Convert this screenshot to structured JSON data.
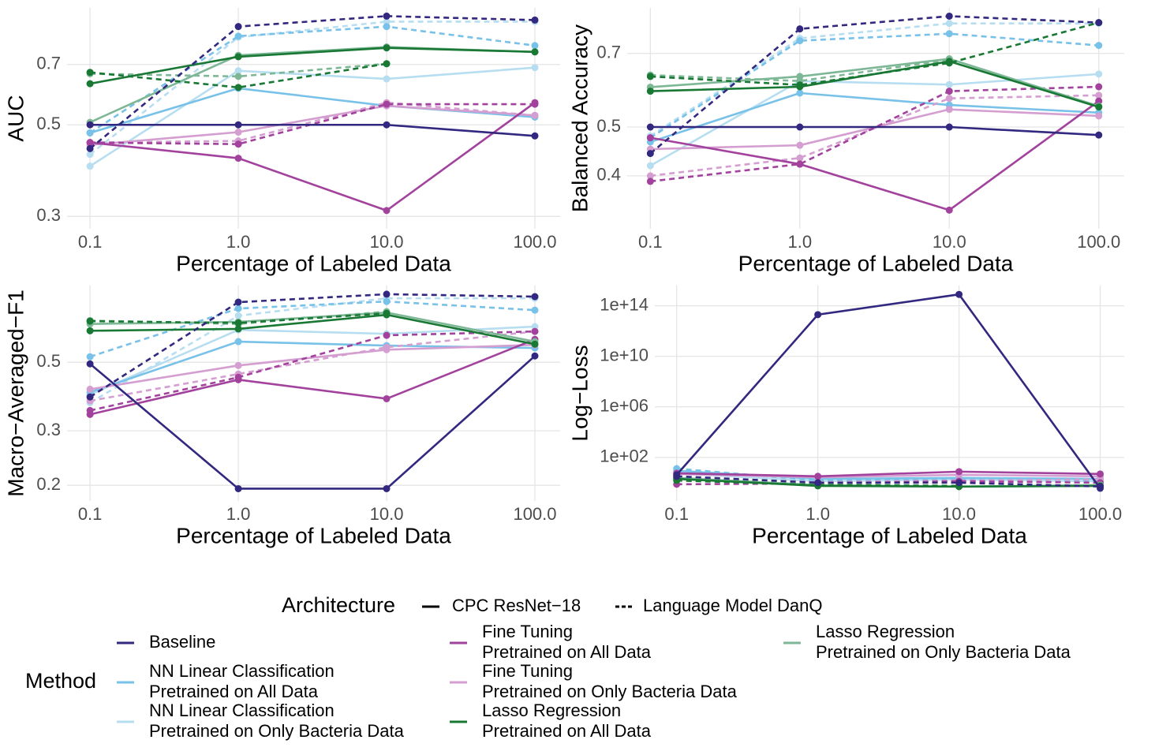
{
  "chart_data": [
    {
      "type": "line",
      "ylabel": "AUC",
      "xlabel": "Percentage of Labeled Data",
      "xlog": true,
      "ylog": true,
      "grid": true,
      "x": [
        0.1,
        1,
        10,
        100
      ],
      "xlim": [
        0.07,
        148
      ],
      "xticks": [
        0.1,
        {
          "value": 1,
          "label": "1.0"
        },
        {
          "value": 10,
          "label": "10.0"
        },
        {
          "value": 100,
          "label": "100.0"
        }
      ],
      "ylim": [
        0.28,
        0.96
      ],
      "yticks": [
        0.3,
        0.5,
        0.7
      ],
      "series": [
        {
          "color": "#b7def0",
          "linestyle": "solid",
          "values": [
            0.397,
            0.676,
            0.646,
            0.688
          ]
        },
        {
          "color": "#b7def0",
          "linestyle": "dashed",
          "values": [
            0.424,
            0.815,
            0.889,
            0.889
          ]
        },
        {
          "color": "#78c1e8",
          "linestyle": "solid",
          "values": [
            0.478,
            0.613,
            0.556,
            0.522
          ]
        },
        {
          "color": "#78c1e8",
          "linestyle": "dashed",
          "values": [
            0.478,
            0.82,
            0.865,
            0.778
          ]
        },
        {
          "color": "#d49fd0",
          "linestyle": "solid",
          "values": [
            0.447,
            0.48,
            0.556,
            0.527
          ]
        },
        {
          "color": "#d49fd0",
          "linestyle": "dashed",
          "values": [
            0.453,
            0.457,
            0.566,
            0.527
          ]
        },
        {
          "color": "#a2429d",
          "linestyle": "solid",
          "values": [
            0.453,
            0.415,
            0.31,
            0.566
          ]
        },
        {
          "color": "#a2429d",
          "linestyle": "dashed",
          "values": [
            0.453,
            0.449,
            0.561,
            0.561
          ]
        },
        {
          "color": "#7db796",
          "linestyle": "solid",
          "values": [
            0.507,
            0.737,
            0.772,
            0.751
          ]
        },
        {
          "color": "#7db796",
          "linestyle": "dashed",
          "values": [
            0.665,
            0.655,
            0.703,
            null
          ]
        },
        {
          "color": "#187834",
          "linestyle": "solid",
          "values": [
            0.629,
            0.731,
            0.768,
            0.751
          ]
        },
        {
          "color": "#187834",
          "linestyle": "dashed",
          "values": [
            0.67,
            0.616,
            0.703,
            null
          ]
        },
        {
          "color": "#32287f",
          "linestyle": "solid",
          "values": [
            0.5,
            0.5,
            0.5,
            0.47
          ]
        },
        {
          "color": "#32287f",
          "linestyle": "dashed",
          "values": [
            0.438,
            0.865,
            0.917,
            0.897
          ]
        }
      ]
    },
    {
      "type": "line",
      "ylabel": "Balanced Accuracy",
      "xlabel": "Percentage of Labeled Data",
      "xlog": true,
      "ylog": true,
      "grid": true,
      "x": [
        0.1,
        1,
        10,
        100
      ],
      "xlim": [
        0.07,
        148
      ],
      "xticks": [
        0.1,
        {
          "value": 1,
          "label": "1.0"
        },
        {
          "value": 10,
          "label": "10.0"
        },
        {
          "value": 100,
          "label": "100.0"
        }
      ],
      "ylim": [
        0.314,
        0.862
      ],
      "yticks": [
        0.4,
        0.5,
        0.7
      ],
      "series": [
        {
          "color": "#b7def0",
          "linestyle": "solid",
          "values": [
            0.419,
            0.617,
            0.607,
            0.637
          ]
        },
        {
          "color": "#b7def0",
          "linestyle": "dashed",
          "values": [
            0.48,
            0.75,
            0.803,
            0.803
          ]
        },
        {
          "color": "#78c1e8",
          "linestyle": "solid",
          "values": [
            0.467,
            0.584,
            0.553,
            0.534
          ]
        },
        {
          "color": "#78c1e8",
          "linestyle": "dashed",
          "values": [
            0.476,
            0.742,
            0.766,
            0.726
          ]
        },
        {
          "color": "#d49fd0",
          "linestyle": "solid",
          "values": [
            0.452,
            0.46,
            0.542,
            0.526
          ]
        },
        {
          "color": "#d49fd0",
          "linestyle": "dashed",
          "values": [
            0.4,
            0.434,
            0.57,
            0.578
          ]
        },
        {
          "color": "#a2429d",
          "linestyle": "solid",
          "values": [
            0.476,
            0.422,
            0.342,
            0.563
          ]
        },
        {
          "color": "#a2429d",
          "linestyle": "dashed",
          "values": [
            0.39,
            0.422,
            0.589,
            0.601
          ]
        },
        {
          "color": "#7db796",
          "linestyle": "solid",
          "values": [
            0.6,
            0.63,
            0.683,
            0.55
          ]
        },
        {
          "color": "#7db796",
          "linestyle": "dashed",
          "values": [
            0.634,
            0.617,
            0.68,
            null
          ]
        },
        {
          "color": "#187834",
          "linestyle": "solid",
          "values": [
            0.589,
            0.601,
            0.675,
            0.548
          ]
        },
        {
          "color": "#187834",
          "linestyle": "dashed",
          "values": [
            0.63,
            0.606,
            0.67,
            0.806
          ]
        },
        {
          "color": "#32287f",
          "linestyle": "solid",
          "values": [
            0.5,
            0.5,
            0.5,
            0.482
          ]
        },
        {
          "color": "#32287f",
          "linestyle": "dashed",
          "values": [
            0.443,
            0.783,
            0.83,
            0.806
          ]
        }
      ]
    },
    {
      "type": "line",
      "ylabel": "Macro−Averaged−F1",
      "xlabel": "Percentage of Labeled Data",
      "xlog": true,
      "ylog": true,
      "grid": true,
      "x": [
        0.1,
        1,
        10,
        100
      ],
      "xlim": [
        0.07,
        148
      ],
      "xticks": [
        0.1,
        {
          "value": 1,
          "label": "1.0"
        },
        {
          "value": 10,
          "label": "10.0"
        },
        {
          "value": 100,
          "label": "100.0"
        }
      ],
      "ylim": [
        0.178,
        0.885
      ],
      "yticks": [
        0.2,
        0.3,
        0.5
      ],
      "series": [
        {
          "color": "#b7def0",
          "linestyle": "solid",
          "values": [
            0.393,
            0.636,
            0.618,
            0.652
          ]
        },
        {
          "color": "#b7def0",
          "linestyle": "dashed",
          "values": [
            0.37,
            0.707,
            0.805,
            0.805
          ]
        },
        {
          "color": "#78c1e8",
          "linestyle": "solid",
          "values": [
            0.4,
            0.583,
            0.566,
            0.556
          ]
        },
        {
          "color": "#78c1e8",
          "linestyle": "dashed",
          "values": [
            0.521,
            0.746,
            0.786,
            0.737
          ]
        },
        {
          "color": "#d49fd0",
          "linestyle": "solid",
          "values": [
            0.409,
            0.488,
            0.549,
            0.569
          ]
        },
        {
          "color": "#d49fd0",
          "linestyle": "dashed",
          "values": [
            0.375,
            0.458,
            0.559,
            0.629
          ]
        },
        {
          "color": "#a2429d",
          "linestyle": "solid",
          "values": [
            0.339,
            0.439,
            0.381,
            0.593
          ]
        },
        {
          "color": "#a2429d",
          "linestyle": "dashed",
          "values": [
            0.349,
            0.447,
            0.611,
            0.629
          ]
        },
        {
          "color": "#7db796",
          "linestyle": "solid",
          "values": [
            0.665,
            0.675,
            0.724,
            0.583
          ]
        },
        {
          "color": "#7db796",
          "linestyle": "dashed",
          "values": [
            0.682,
            0.665,
            0.729,
            null
          ]
        },
        {
          "color": "#187834",
          "linestyle": "solid",
          "values": [
            0.632,
            0.641,
            0.712,
            0.572
          ]
        },
        {
          "color": "#187834",
          "linestyle": "dashed",
          "values": [
            0.679,
            0.67,
            0.72,
            null
          ]
        },
        {
          "color": "#32287f",
          "linestyle": "solid",
          "values": [
            0.494,
            0.195,
            0.195,
            0.524
          ]
        },
        {
          "color": "#32287f",
          "linestyle": "dashed",
          "values": [
            0.386,
            0.782,
            0.83,
            0.815
          ]
        }
      ]
    },
    {
      "type": "line",
      "ylabel": "Log−Loss",
      "xlabel": "Percentage of Labeled Data",
      "xlog": true,
      "ylog": true,
      "grid": true,
      "x": [
        0.1,
        1,
        10,
        100
      ],
      "xlim": [
        0.07,
        148
      ],
      "xticks": [
        0.1,
        {
          "value": 1,
          "label": "1.0"
        },
        {
          "value": 10,
          "label": "10.0"
        },
        {
          "value": 100,
          "label": "100.0"
        }
      ],
      "ylim": [
        0.036,
        4000000000000000.0
      ],
      "yticks": [
        {
          "value": 100,
          "label": "1e+02"
        },
        {
          "value": 1000000.0,
          "label": "1e+06"
        },
        {
          "value": 10000000000.0,
          "label": "1e+10"
        },
        {
          "value": 100000000000000.0,
          "label": "1e+14"
        }
      ],
      "series": [
        {
          "color": "#b7def0",
          "linestyle": "solid",
          "values": [
            5.6,
            1.3,
            1.8,
            1.3
          ]
        },
        {
          "color": "#b7def0",
          "linestyle": "dashed",
          "values": [
            7.5,
            1.1,
            1.5,
            1.0
          ]
        },
        {
          "color": "#78c1e8",
          "linestyle": "solid",
          "values": [
            8.7,
            2.0,
            2.4,
            2.0
          ]
        },
        {
          "color": "#78c1e8",
          "linestyle": "dashed",
          "values": [
            13,
            1.5,
            2,
            1.5
          ]
        },
        {
          "color": "#d49fd0",
          "linestyle": "solid",
          "values": [
            4.9,
            2.7,
            4.2,
            3.2
          ]
        },
        {
          "color": "#d49fd0",
          "linestyle": "dashed",
          "values": [
            2.4,
            1.1,
            1.5,
            1.8
          ]
        },
        {
          "color": "#a2429d",
          "linestyle": "solid",
          "values": [
            5.6,
            3.2,
            7.5,
            4.9
          ]
        },
        {
          "color": "#a2429d",
          "linestyle": "dashed",
          "values": [
            0.75,
            0.87,
            1.3,
            1.0
          ]
        },
        {
          "color": "#7db796",
          "linestyle": "solid",
          "values": [
            2.4,
            0.65,
            0.49,
            0.65
          ]
        },
        {
          "color": "#7db796",
          "linestyle": "dashed",
          "values": [
            2.7,
            0.75,
            0.56,
            null
          ]
        },
        {
          "color": "#187834",
          "linestyle": "solid",
          "values": [
            2.0,
            0.56,
            0.49,
            0.56
          ]
        },
        {
          "color": "#187834",
          "linestyle": "dashed",
          "values": [
            1.5,
            0.65,
            0.56,
            null
          ]
        },
        {
          "color": "#32287f",
          "linestyle": "solid",
          "values": [
            4.2,
            20000000000000.0,
            800000000000000.0,
            0.36
          ]
        },
        {
          "color": "#32287f",
          "linestyle": "dashed",
          "values": [
            3.2,
            1,
            1,
            0.5
          ]
        }
      ]
    }
  ],
  "legend": {
    "architecture": {
      "title": "Architecture",
      "items": [
        {
          "label": "CPC ResNet−18",
          "linestyle": "solid"
        },
        {
          "label": "Language Model DanQ",
          "linestyle": "dashed"
        }
      ]
    },
    "method": {
      "title": "Method",
      "items": [
        {
          "label": [
            "Baseline"
          ],
          "color": "#32287f"
        },
        {
          "label": [
            "NN Linear Classification",
            "Pretrained on All Data"
          ],
          "color": "#78c1e8"
        },
        {
          "label": [
            "NN Linear Classification",
            "Pretrained on Only Bacteria Data"
          ],
          "color": "#b7def0"
        },
        {
          "label": [
            "Fine Tuning",
            "Pretrained on All Data"
          ],
          "color": "#a2429d"
        },
        {
          "label": [
            "Fine Tuning",
            "Pretrained on Only Bacteria Data"
          ],
          "color": "#d49fd0"
        },
        {
          "label": [
            "Lasso Regression",
            "Pretrained on All Data"
          ],
          "color": "#187834"
        },
        {
          "label": [
            "Lasso Regression",
            "Pretrained on Only Bacteria Data"
          ],
          "color": "#7db796"
        }
      ]
    }
  }
}
